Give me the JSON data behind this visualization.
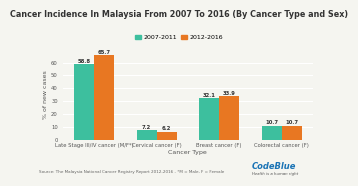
{
  "title": "Cancer Incidence In Malaysia From 2007 To 2016 (By Cancer Type and Sex)",
  "categories": [
    "Late Stage III/IV cancer (M/F*)",
    "Cervical cancer (F)",
    "Breast cancer (F)",
    "Colorectal cancer (F)"
  ],
  "series": [
    {
      "label": "2007-2011",
      "color": "#3dbf9e",
      "values": [
        58.8,
        7.2,
        32.1,
        10.7
      ]
    },
    {
      "label": "2012-2016",
      "color": "#e87722",
      "values": [
        65.7,
        6.2,
        33.9,
        10.7
      ]
    }
  ],
  "ylabel": "% of new cases",
  "xlabel": "Cancer Type",
  "ylim": [
    0,
    70
  ],
  "yticks": [
    0,
    10,
    20,
    30,
    40,
    50,
    60
  ],
  "bar_width": 0.32,
  "background_color": "#f5f5f0",
  "source_text": "Source: The Malaysia National Cancer Registry Report 2012-2016 - *M = Male, F = Female",
  "codeblue_text": "CodeBlue",
  "codeblue_sub": "Health is a human right",
  "title_fontsize": 5.8,
  "axis_fontsize": 4.5,
  "tick_fontsize": 3.8,
  "bar_label_fontsize": 3.8,
  "legend_fontsize": 4.5
}
